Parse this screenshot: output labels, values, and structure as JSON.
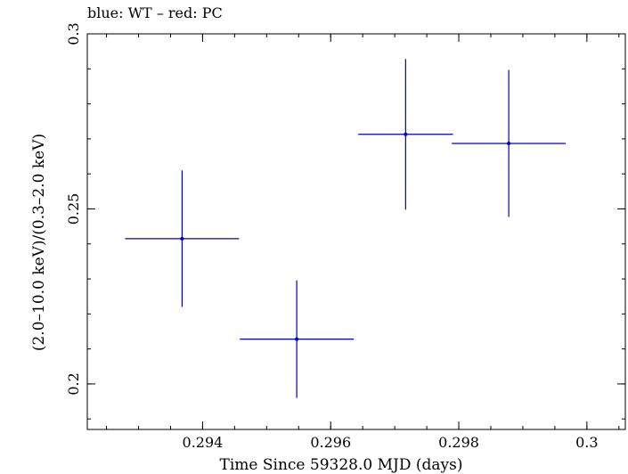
{
  "chart_data": {
    "type": "scatter",
    "title": "blue: WT – red: PC",
    "xlabel": "Time Since 59328.0 MJD (days)",
    "ylabel": "(2.0–10.0 keV)/(0.3–2.0 keV)",
    "xlim": [
      0.2922,
      0.3006
    ],
    "ylim": [
      0.187,
      0.3
    ],
    "xticks": [
      {
        "value": 0.294,
        "label": "0.294"
      },
      {
        "value": 0.296,
        "label": "0.296"
      },
      {
        "value": 0.298,
        "label": "0.298"
      },
      {
        "value": 0.3,
        "label": "0.3"
      }
    ],
    "yticks": [
      {
        "value": 0.2,
        "label": "0.2"
      },
      {
        "value": 0.25,
        "label": "0.25"
      },
      {
        "value": 0.3,
        "label": "0.3"
      }
    ],
    "xminor_step": 0.0005,
    "yminor_step": 0.01,
    "series": [
      {
        "name": "WT",
        "color": "#0000cc",
        "points": [
          {
            "x": 0.29368,
            "xerr": 0.00089,
            "y": 0.2415,
            "yerr": 0.0195
          },
          {
            "x": 0.29547,
            "xerr": 0.00089,
            "y": 0.2128,
            "yerr": 0.0168
          },
          {
            "x": 0.29717,
            "xerr": 0.00074,
            "y": 0.2713,
            "yerr": 0.0215
          },
          {
            "x": 0.29878,
            "xerr": 0.00089,
            "y": 0.2687,
            "yerr": 0.021
          }
        ]
      }
    ]
  }
}
